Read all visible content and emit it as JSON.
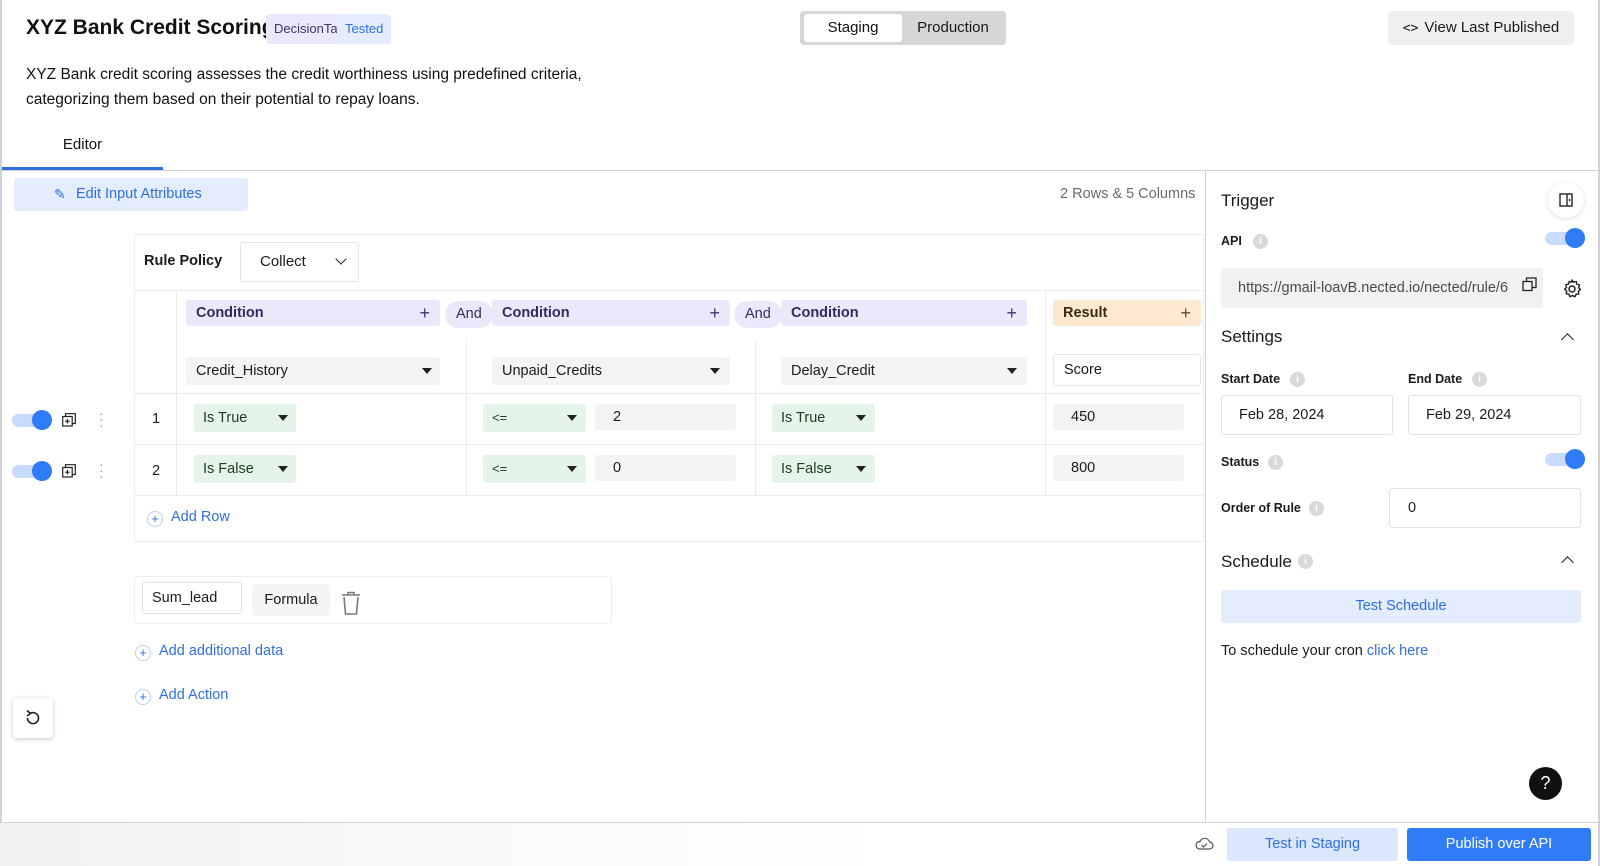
{
  "header": {
    "title": "XYZ Bank Credit Scoring",
    "tags": [
      "DecisionTable",
      "Tested"
    ],
    "env_switch": {
      "staging": "Staging",
      "production": "Production",
      "active": "Staging"
    },
    "view_last_published": "View Last Published",
    "description": "XYZ Bank credit scoring assesses the credit worthiness using predefined criteria, categorizing them based on their potential to repay loans.",
    "tab": "Editor"
  },
  "editor": {
    "edit_input_attributes": "Edit Input Attributes",
    "summary": "2 Rows & 5 Columns",
    "rule_policy": {
      "label": "Rule Policy",
      "value": "Collect"
    },
    "columns": [
      {
        "header": "Condition",
        "attribute": "Credit_History"
      },
      {
        "connector": "And"
      },
      {
        "header": "Condition",
        "attribute": "Unpaid_Credits"
      },
      {
        "connector": "And"
      },
      {
        "header": "Condition",
        "attribute": "Delay_Credit"
      },
      {
        "header": "Result",
        "attribute": "Score"
      }
    ],
    "connector_label": "And",
    "rows": [
      {
        "num": "1",
        "enabled": true,
        "c1": "Is True",
        "c2_op": "<=",
        "c2_val": "2",
        "c3": "Is True",
        "result": "450"
      },
      {
        "num": "2",
        "enabled": true,
        "c1": "Is False",
        "c2_op": "<=",
        "c2_val": "0",
        "c3": "Is False",
        "result": "800"
      }
    ],
    "add_row": "Add Row",
    "additional_data": {
      "name": "Sum_lead",
      "type": "Formula"
    },
    "add_additional_data": "Add additional data",
    "add_action": "Add Action"
  },
  "sidebar": {
    "trigger_title": "Trigger",
    "api_label": "API",
    "api_enabled": true,
    "api_url": "https://gmail-loavB.nected.io/nected/rule/6",
    "settings_title": "Settings",
    "start_date_label": "Start Date",
    "start_date": "Feb 28, 2024",
    "end_date_label": "End Date",
    "end_date": "Feb 29, 2024",
    "status_label": "Status",
    "status_enabled": true,
    "order_label": "Order of Rule",
    "order_value": "0",
    "schedule_title": "Schedule",
    "test_schedule": "Test Schedule",
    "cron_text": "To schedule your cron",
    "cron_link": "click here"
  },
  "footer": {
    "test_in_staging": "Test in Staging",
    "publish": "Publish over API"
  },
  "colors": {
    "accent": "#2f7cf6",
    "condition_bg": "#ece8fb",
    "result_bg": "#fde9d2",
    "operator_bg": "#e5f4e8"
  }
}
